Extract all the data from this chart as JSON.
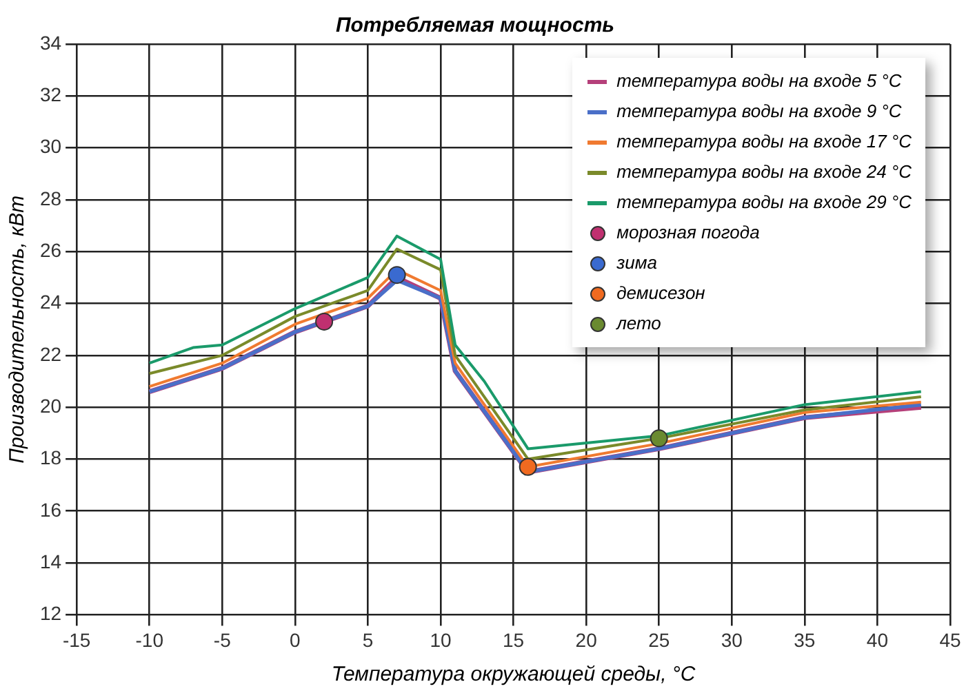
{
  "chart_data": {
    "type": "line",
    "title": "Потребляемая мощность",
    "xlabel": "Температура окружающей среды, °C",
    "ylabel": "Производительность, кВт",
    "xlim": [
      -15,
      45
    ],
    "xticks": [
      -15,
      -10,
      -5,
      0,
      5,
      10,
      15,
      20,
      25,
      30,
      35,
      40,
      45
    ],
    "ylim": [
      12,
      34
    ],
    "yticks": [
      12,
      14,
      16,
      18,
      20,
      22,
      24,
      26,
      28,
      30,
      32,
      34
    ],
    "grid": true,
    "legend": "top right",
    "marker": "none",
    "line_style": "solid",
    "series": [
      {
        "name": "температура воды на входе 5 °C",
        "color": "#b5407a",
        "x": [
          -10,
          -5,
          0,
          5,
          7,
          10,
          11,
          16,
          25,
          35,
          43
        ],
        "values": [
          20.6,
          21.5,
          22.9,
          23.9,
          25.0,
          24.2,
          21.4,
          17.5,
          18.4,
          19.6,
          20.0
        ]
      },
      {
        "name": "температура воды на входе 9 °C",
        "color": "#4a6fc8",
        "x": [
          -10,
          -5,
          0,
          5,
          7,
          10,
          11,
          16,
          25,
          35,
          43
        ],
        "values": [
          20.6,
          21.5,
          22.9,
          23.9,
          24.9,
          24.2,
          21.4,
          17.5,
          18.4,
          19.6,
          20.1
        ]
      },
      {
        "name": "температура воды на входе 17 °C",
        "color": "#f07a30",
        "x": [
          -10,
          -5,
          0,
          5,
          7,
          10,
          11,
          16,
          25,
          35,
          43
        ],
        "values": [
          20.8,
          21.7,
          23.2,
          24.2,
          25.3,
          24.5,
          21.7,
          17.7,
          18.6,
          19.8,
          20.2
        ]
      },
      {
        "name": "температура воды на входе 24 °C",
        "color": "#7a8a2a",
        "x": [
          -10,
          -5,
          0,
          5,
          7,
          10,
          11,
          16,
          25,
          35,
          43
        ],
        "values": [
          21.3,
          22.0,
          23.5,
          24.5,
          26.1,
          25.3,
          22.0,
          18.0,
          18.8,
          19.9,
          20.4
        ]
      },
      {
        "name": "температура воды на входе 29 °C",
        "color": "#1a9a6a",
        "x": [
          -10,
          -7,
          -5,
          0,
          5,
          7,
          10,
          11,
          13,
          16,
          25,
          35,
          43
        ],
        "values": [
          21.7,
          22.3,
          22.4,
          23.8,
          25.0,
          26.6,
          25.7,
          22.4,
          21.0,
          18.4,
          18.9,
          20.1,
          20.6
        ]
      },
      {
        "name": "морозная погода",
        "type": "scatter",
        "marker": "circle",
        "color": "#c03070",
        "x": [
          2
        ],
        "values": [
          23.3
        ]
      },
      {
        "name": "зима",
        "type": "scatter",
        "marker": "circle",
        "color": "#3a6ad0",
        "x": [
          7
        ],
        "values": [
          25.1
        ]
      },
      {
        "name": "демисезон",
        "type": "scatter",
        "marker": "circle",
        "color": "#f06a20",
        "x": [
          16
        ],
        "values": [
          17.7
        ]
      },
      {
        "name": "лето",
        "type": "scatter",
        "marker": "circle",
        "color": "#6a8a30",
        "x": [
          25
        ],
        "values": [
          18.8
        ]
      }
    ]
  }
}
